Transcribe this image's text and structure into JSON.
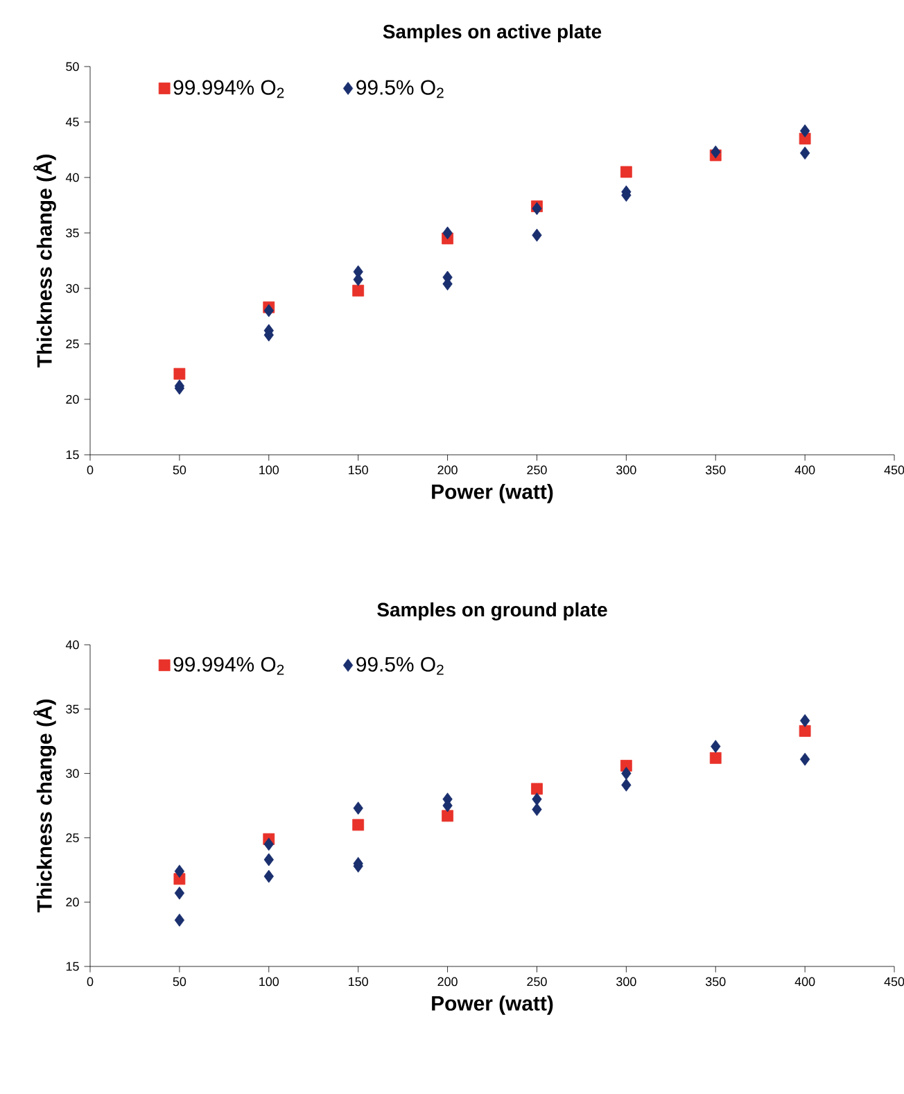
{
  "chart_data": [
    {
      "type": "scatter",
      "title": "Samples on active plate",
      "xlabel": "Power (watt)",
      "ylabel": "Thickness change (Å)",
      "xlim": [
        0,
        450
      ],
      "xticks": [
        0,
        50,
        100,
        150,
        200,
        250,
        300,
        350,
        400,
        450
      ],
      "ylim": [
        15,
        50
      ],
      "yticks": [
        15,
        20,
        25,
        30,
        35,
        40,
        45,
        50
      ],
      "grid": false,
      "legend": "top left",
      "series": [
        {
          "name": "99.994% O$_{2}$",
          "color": "#e8322a",
          "marker": "square",
          "x": [
            50,
            100,
            150,
            200,
            250,
            300,
            350,
            400
          ],
          "values": [
            22.3,
            28.3,
            29.8,
            34.5,
            37.4,
            40.5,
            42.0,
            43.5
          ]
        },
        {
          "name": "99.5% O$_{2}$",
          "color": "#1a2f6e",
          "marker": "diamond",
          "x": [
            50,
            50,
            100,
            100,
            100,
            150,
            150,
            200,
            200,
            200,
            250,
            250,
            300,
            300,
            350,
            400,
            400
          ],
          "values": [
            21.2,
            21.0,
            28.0,
            26.2,
            25.8,
            31.5,
            30.8,
            35.0,
            31.0,
            30.4,
            37.2,
            34.8,
            38.7,
            38.4,
            42.3,
            44.2,
            42.2
          ]
        }
      ]
    },
    {
      "type": "scatter",
      "title": "Samples on ground plate",
      "xlabel": "Power (watt)",
      "ylabel": "Thickness change (Å)",
      "xlim": [
        0,
        450
      ],
      "xticks": [
        0,
        50,
        100,
        150,
        200,
        250,
        300,
        350,
        400,
        450
      ],
      "ylim": [
        15,
        40
      ],
      "yticks": [
        15,
        20,
        25,
        30,
        35,
        40
      ],
      "grid": false,
      "legend": "top left",
      "series": [
        {
          "name": "99.994% O$_{2}$",
          "color": "#e8322a",
          "marker": "square",
          "x": [
            50,
            100,
            150,
            200,
            250,
            300,
            350,
            400
          ],
          "values": [
            21.8,
            24.9,
            26.0,
            26.7,
            28.8,
            30.6,
            31.2,
            33.3
          ]
        },
        {
          "name": "99.5% O$_{2}$",
          "color": "#1a2f6e",
          "marker": "diamond",
          "x": [
            50,
            50,
            50,
            100,
            100,
            100,
            150,
            150,
            150,
            200,
            200,
            250,
            250,
            300,
            300,
            350,
            400,
            400
          ],
          "values": [
            22.4,
            20.7,
            18.6,
            24.5,
            23.3,
            22.0,
            27.3,
            23.0,
            22.8,
            28.0,
            27.5,
            28.0,
            27.2,
            30.0,
            29.1,
            32.1,
            34.1,
            31.1
          ]
        }
      ]
    }
  ]
}
